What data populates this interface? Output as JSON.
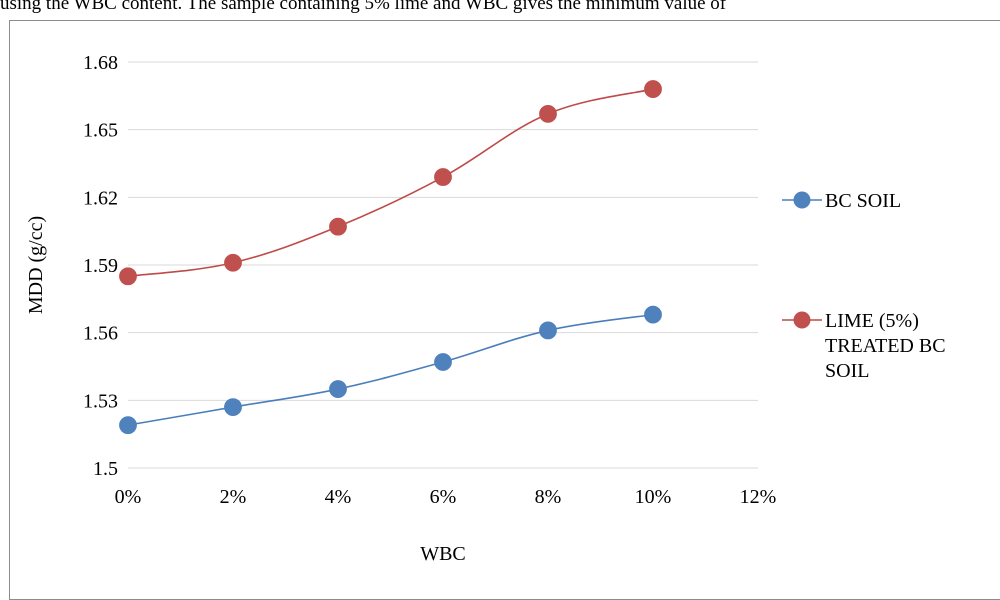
{
  "page": {
    "header_text": "using the WBC content. The sample containing 5% lime and WBC gives the minimum value of"
  },
  "chart_data": {
    "type": "line",
    "title": "",
    "xlabel": "WBC",
    "ylabel": "MDD (g/cc)",
    "x": [
      0,
      2,
      4,
      6,
      8,
      10
    ],
    "x_ticks": [
      "0%",
      "2%",
      "4%",
      "6%",
      "8%",
      "10%",
      "12%"
    ],
    "x_tick_values": [
      0,
      2,
      4,
      6,
      8,
      10,
      12
    ],
    "xlim": [
      0,
      12
    ],
    "ylim": [
      1.5,
      1.68
    ],
    "y_ticks": [
      "1.5",
      "1.53",
      "1.56",
      "1.59",
      "1.62",
      "1.65",
      "1.68"
    ],
    "y_tick_values": [
      1.5,
      1.53,
      1.56,
      1.59,
      1.62,
      1.65,
      1.68
    ],
    "grid": "horizontal",
    "legend_position": "right",
    "series": [
      {
        "name": "BC SOIL",
        "legend_lines": [
          "BC SOIL"
        ],
        "values": [
          1.519,
          1.527,
          1.535,
          1.547,
          1.561,
          1.568
        ],
        "line_color": "#4a7ebb",
        "marker_color": "#4f81bd"
      },
      {
        "name": "LIME (5%) TREATED BC SOIL",
        "legend_lines": [
          "LIME (5%)",
          "TREATED BC",
          "SOIL"
        ],
        "values": [
          1.585,
          1.591,
          1.607,
          1.629,
          1.657,
          1.668
        ],
        "line_color": "#be4b48",
        "marker_color": "#c0504d"
      }
    ]
  }
}
